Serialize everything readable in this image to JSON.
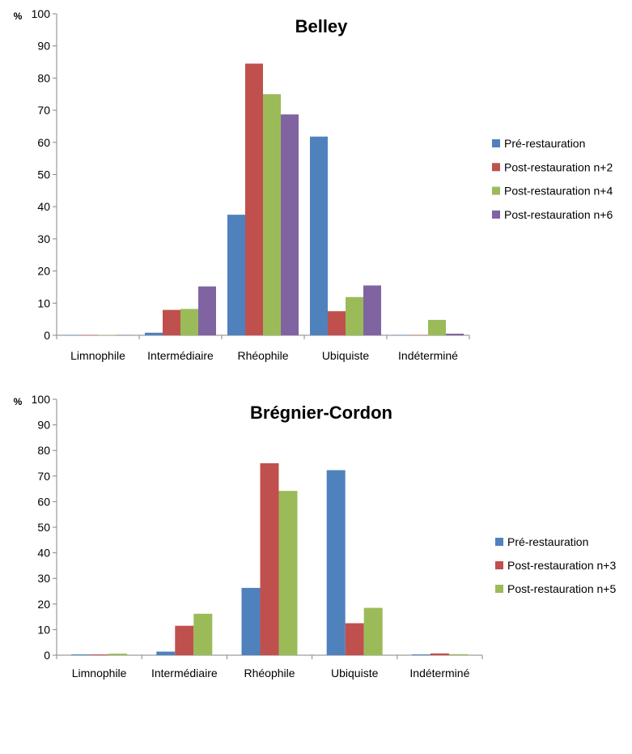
{
  "chart_data": [
    {
      "type": "bar",
      "title": "Belley",
      "ylabel": "%",
      "ylim": [
        0,
        100
      ],
      "yticks": [
        0,
        10,
        20,
        30,
        40,
        50,
        60,
        70,
        80,
        90,
        100
      ],
      "grid": false,
      "legend_position": "right",
      "categories": [
        "Limnophile",
        "Intermédiaire",
        "Rhéophile",
        "Ubiquiste",
        "Indéterminé"
      ],
      "series": [
        {
          "name": "Pré-restauration",
          "color": "#4F81BD",
          "values": [
            0.1,
            0.8,
            37.5,
            61.8,
            0.1
          ]
        },
        {
          "name": "Post-restauration n+2",
          "color": "#C0504D",
          "values": [
            0.1,
            7.9,
            84.5,
            7.5,
            0.1
          ]
        },
        {
          "name": "Post-restauration n+4",
          "color": "#9BBB59",
          "values": [
            0.1,
            8.2,
            75.0,
            11.9,
            4.8
          ]
        },
        {
          "name": "Post-restauration n+6",
          "color": "#8064A2",
          "values": [
            0.1,
            15.2,
            68.7,
            15.5,
            0.5
          ]
        }
      ]
    },
    {
      "type": "bar",
      "title": "Brégnier-Cordon",
      "ylabel": "%",
      "ylim": [
        0,
        100
      ],
      "yticks": [
        0,
        10,
        20,
        30,
        40,
        50,
        60,
        70,
        80,
        90,
        100
      ],
      "grid": false,
      "legend_position": "right",
      "categories": [
        "Limnophile",
        "Intermédiaire",
        "Rhéophile",
        "Ubiquiste",
        "Indéterminé"
      ],
      "series": [
        {
          "name": "Pré-restauration",
          "color": "#4F81BD",
          "values": [
            0.3,
            1.4,
            26.3,
            72.3,
            0.3
          ]
        },
        {
          "name": "Post-restauration n+3",
          "color": "#C0504D",
          "values": [
            0.3,
            11.5,
            75.0,
            12.5,
            0.7
          ]
        },
        {
          "name": "Post-restauration n+5",
          "color": "#9BBB59",
          "values": [
            0.6,
            16.2,
            64.2,
            18.5,
            0.4
          ]
        }
      ]
    }
  ]
}
